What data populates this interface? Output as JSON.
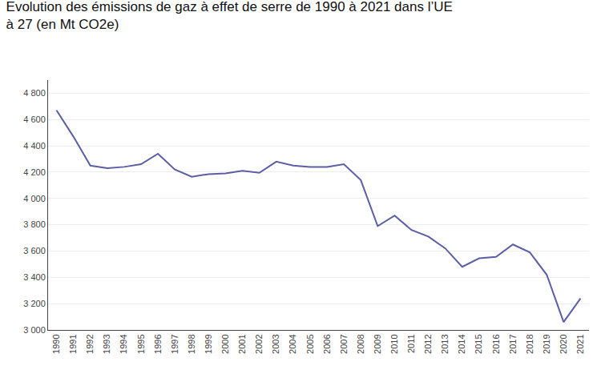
{
  "chart_data": {
    "type": "line",
    "title": "Evolution des émissions de gaz à effet de serre de 1990 à 2021 dans l’UE à 27 (en Mt CO2e)",
    "x": [
      1990,
      1991,
      1992,
      1993,
      1994,
      1995,
      1996,
      1997,
      1998,
      1999,
      2000,
      2001,
      2002,
      2003,
      2004,
      2005,
      2006,
      2007,
      2008,
      2009,
      2010,
      2011,
      2012,
      2013,
      2014,
      2015,
      2016,
      2017,
      2018,
      2019,
      2020,
      2021
    ],
    "values": [
      4670,
      4470,
      4250,
      4230,
      4240,
      4260,
      4340,
      4220,
      4165,
      4185,
      4190,
      4210,
      4195,
      4280,
      4250,
      4240,
      4240,
      4260,
      4140,
      3790,
      3870,
      3760,
      3710,
      3620,
      3480,
      3545,
      3555,
      3650,
      3590,
      3420,
      3060,
      3240
    ],
    "color": "#5b5ea6",
    "xlim": [
      1989.5,
      2021.5
    ],
    "xticks": [
      1990,
      1991,
      1992,
      1993,
      1994,
      1995,
      1996,
      1997,
      1998,
      1999,
      2000,
      2001,
      2002,
      2003,
      2004,
      2005,
      2006,
      2007,
      2008,
      2009,
      2010,
      2011,
      2012,
      2013,
      2014,
      2015,
      2016,
      2017,
      2018,
      2019,
      2020,
      2021
    ],
    "ylim": [
      3000,
      4900
    ],
    "yticks": [
      {
        "value": 3000,
        "label": "3 000"
      },
      {
        "value": 3200,
        "label": "3 200"
      },
      {
        "value": 3400,
        "label": "3 400"
      },
      {
        "value": 3600,
        "label": "3 600"
      },
      {
        "value": 3800,
        "label": "3 800"
      },
      {
        "value": 4000,
        "label": "4 000"
      },
      {
        "value": 4200,
        "label": "4 200"
      },
      {
        "value": 4400,
        "label": "4 400"
      },
      {
        "value": 4600,
        "label": "4 600"
      },
      {
        "value": 4800,
        "label": "4 800"
      }
    ],
    "grid": "y"
  }
}
